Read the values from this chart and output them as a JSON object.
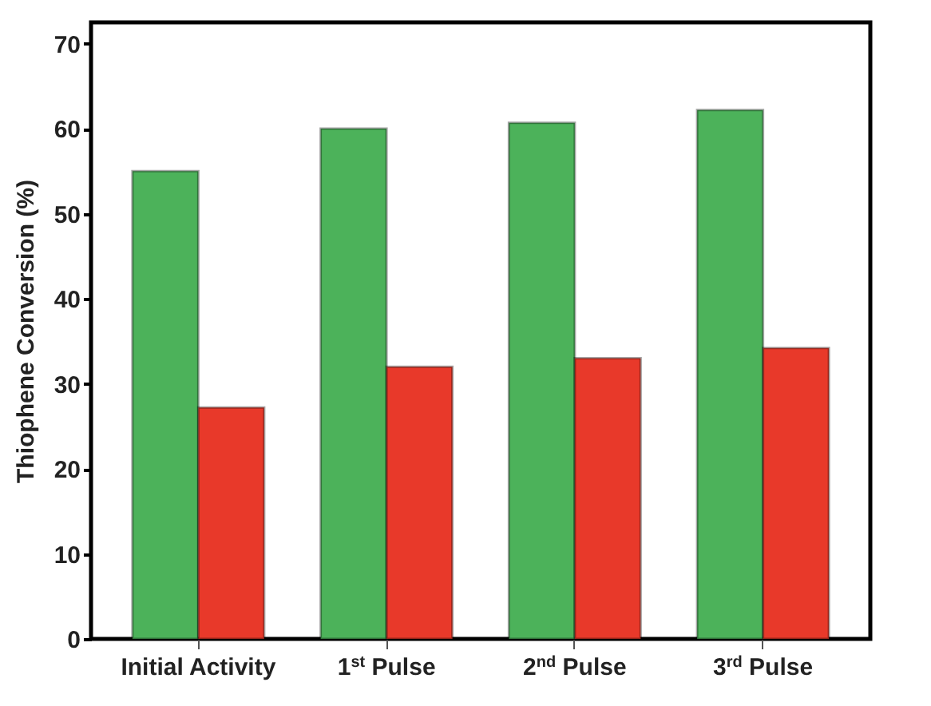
{
  "chart_data": {
    "type": "bar",
    "ylabel": "Thiophene Conversion (%)",
    "categories": [
      "Initial Activity",
      "1$^{st}$ Pulse",
      "2$^{nd}$ Pulse",
      "3$^{rd}$ Pulse"
    ],
    "series": [
      {
        "color": "#4cb25a",
        "values": [
          55,
          60,
          60.7,
          62.2
        ]
      },
      {
        "color": "#e8392a",
        "values": [
          27.2,
          32,
          33,
          34.2
        ]
      }
    ],
    "ylim": [
      0,
      72.5
    ],
    "yticks": [
      0,
      10,
      20,
      30,
      40,
      50,
      60,
      70
    ],
    "grid": false,
    "legend": false
  }
}
